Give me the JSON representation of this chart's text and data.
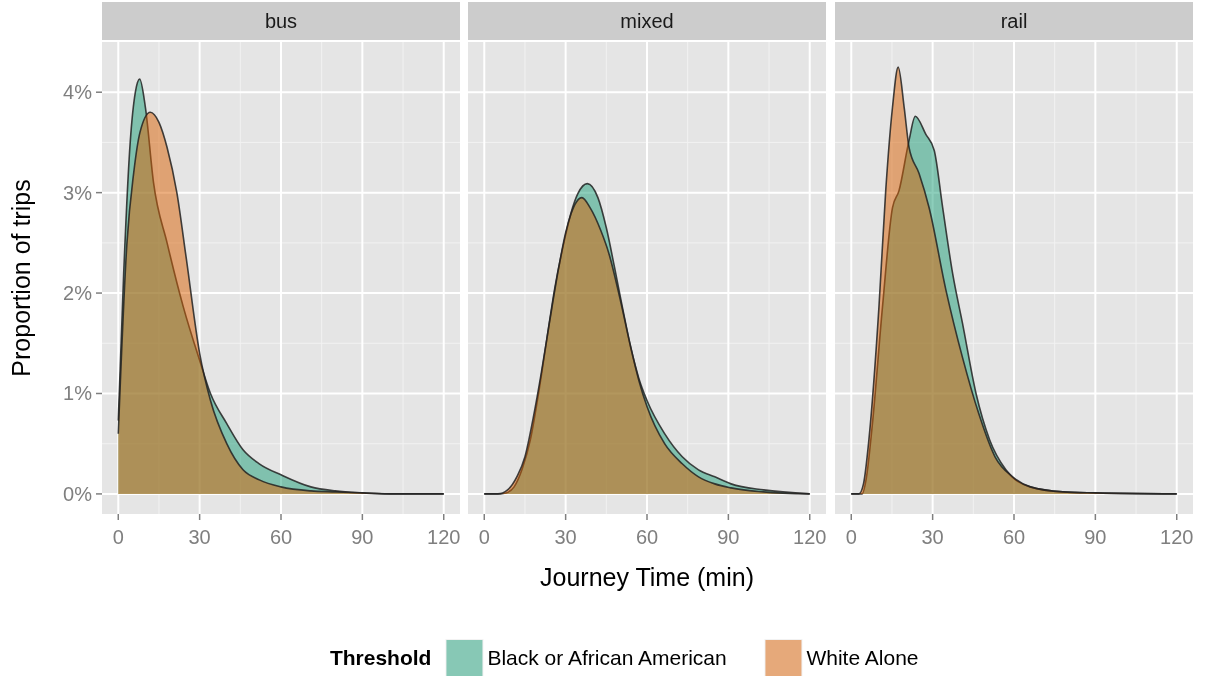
{
  "chart_data": [
    {
      "type": "area",
      "title": "bus",
      "ylabel": "Proportion of trips",
      "xlim": [
        -6,
        126
      ],
      "ylim": [
        -0.2,
        4.5
      ],
      "xticks": [
        0,
        30,
        60,
        90,
        120
      ],
      "yticks": [
        {
          "value": 0,
          "label": "0%"
        },
        {
          "value": 1,
          "label": "1%"
        },
        {
          "value": 2,
          "label": "2%"
        },
        {
          "value": 3,
          "label": "3%"
        },
        {
          "value": 4,
          "label": "4%"
        }
      ],
      "grid": true,
      "legend": false,
      "tick_labels": "xy",
      "series": [
        {
          "color": "#1b9e77",
          "x": [
            0,
            2,
            4.4,
            6.3,
            7.9,
            10,
            13,
            18,
            24,
            30,
            34,
            40,
            46,
            52,
            60,
            71,
            80,
            90,
            100,
            120
          ],
          "values": [
            0.73,
            2.2,
            3.5,
            4.0,
            4.13,
            3.85,
            3.1,
            2.5,
            1.86,
            1.33,
            1.0,
            0.7,
            0.44,
            0.3,
            0.19,
            0.07,
            0.03,
            0.01,
            0.0,
            0
          ]
        },
        {
          "color": "#d95f02",
          "x": [
            0,
            3.2,
            5.7,
            8,
            11.8,
            15,
            18,
            21.6,
            25,
            30,
            34,
            40,
            46,
            52,
            60,
            71,
            80,
            90,
            100,
            120
          ],
          "values": [
            0.6,
            2.5,
            3.2,
            3.6,
            3.8,
            3.7,
            3.45,
            3.0,
            2.36,
            1.4,
            0.93,
            0.5,
            0.24,
            0.14,
            0.07,
            0.03,
            0.02,
            0.01,
            0.0,
            0
          ]
        }
      ]
    },
    {
      "type": "area",
      "title": "mixed",
      "xlabel": "Journey Time (min)",
      "legend_title": "Threshold",
      "xlim": [
        -6,
        126
      ],
      "ylim": [
        -0.2,
        4.5
      ],
      "xticks": [
        0,
        30,
        60,
        90,
        120
      ],
      "yticks": [
        0,
        1,
        2,
        3,
        4
      ],
      "grid": true,
      "legend": "bottom",
      "tick_labels": "x",
      "series": [
        {
          "name": "Black or African American",
          "color": "#1b9e77",
          "x": [
            0,
            5,
            8,
            11,
            14,
            17,
            20,
            23,
            26,
            29.5,
            32,
            34.5,
            38,
            41.9,
            45,
            48,
            51,
            54,
            57,
            60,
            66.5,
            73,
            79,
            85,
            91,
            103,
            120
          ],
          "values": [
            0,
            0,
            0.01,
            0.07,
            0.25,
            0.54,
            1.0,
            1.53,
            2.05,
            2.52,
            2.8,
            2.99,
            3.09,
            2.95,
            2.65,
            2.26,
            1.85,
            1.46,
            1.15,
            0.93,
            0.6,
            0.37,
            0.24,
            0.17,
            0.1,
            0.04,
            0.0
          ]
        },
        {
          "name": "White Alone",
          "color": "#d95f02",
          "x": [
            0,
            5,
            8.6,
            12,
            15,
            18,
            21,
            24,
            27.5,
            30,
            32,
            36,
            39,
            43,
            46,
            50,
            54,
            57,
            60,
            66.5,
            73,
            79,
            85,
            91,
            103,
            120
          ],
          "values": [
            0,
            0,
            0.04,
            0.17,
            0.37,
            0.75,
            1.2,
            1.7,
            2.26,
            2.6,
            2.79,
            2.95,
            2.85,
            2.62,
            2.39,
            1.95,
            1.46,
            1.13,
            0.87,
            0.5,
            0.3,
            0.17,
            0.1,
            0.06,
            0.02,
            0
          ]
        }
      ]
    },
    {
      "type": "area",
      "title": "rail",
      "xlim": [
        -6,
        126
      ],
      "ylim": [
        -0.2,
        4.5
      ],
      "xticks": [
        0,
        30,
        60,
        90,
        120
      ],
      "yticks": [
        0,
        1,
        2,
        3,
        4
      ],
      "grid": true,
      "legend": false,
      "tick_labels": "x",
      "series": [
        {
          "color": "#1b9e77",
          "x": [
            0,
            4,
            5.5,
            7.8,
            11.5,
            15.2,
            17.6,
            21.3,
            23.6,
            27.5,
            30.6,
            33.7,
            37.4,
            41,
            46,
            51,
            57,
            66,
            78,
            90,
            120
          ],
          "values": [
            0,
            0,
            0.15,
            0.7,
            1.86,
            2.85,
            3.02,
            3.52,
            3.76,
            3.58,
            3.42,
            2.85,
            2.19,
            1.7,
            1.0,
            0.54,
            0.24,
            0.07,
            0.02,
            0.01,
            0
          ]
        },
        {
          "color": "#d95f02",
          "x": [
            0,
            2.8,
            4.5,
            6.5,
            10.2,
            12.7,
            15.2,
            17.3,
            19.5,
            21.3,
            25,
            28.7,
            34.9,
            41,
            47,
            53,
            59.5,
            66,
            78,
            90,
            120
          ],
          "values": [
            0,
            0,
            0.1,
            0.54,
            1.86,
            3.02,
            3.85,
            4.25,
            3.85,
            3.45,
            3.19,
            2.85,
            2.03,
            1.36,
            0.8,
            0.37,
            0.17,
            0.07,
            0.02,
            0.01,
            0
          ]
        }
      ]
    }
  ]
}
